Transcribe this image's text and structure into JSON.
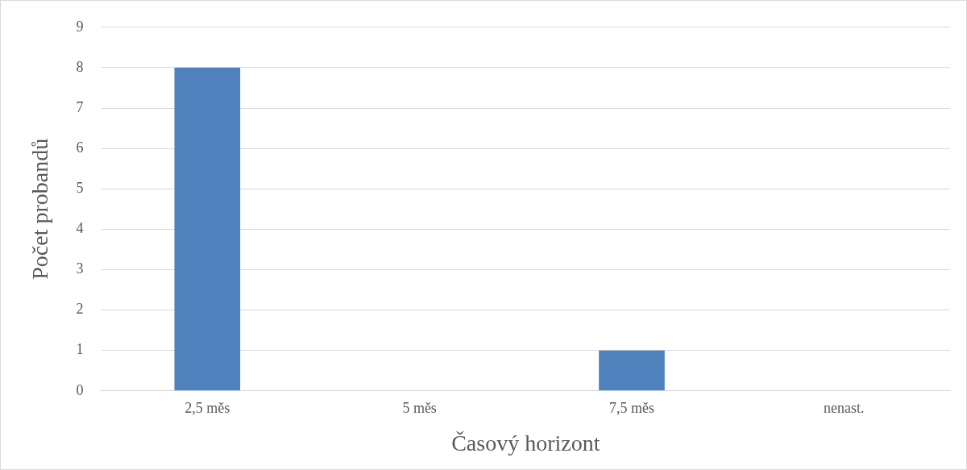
{
  "chart_data": {
    "type": "bar",
    "xlabel": "Časový horizont",
    "ylabel": "Počet probandů",
    "categories": [
      "2,5 měs",
      "5 měs",
      "7,5 měs",
      "nenast."
    ],
    "values": [
      8,
      0,
      1,
      0
    ],
    "color": "#4f81bd",
    "ylim": [
      0,
      9
    ],
    "yticks": [
      0,
      1,
      2,
      3,
      4,
      5,
      6,
      7,
      8,
      9
    ],
    "grid": "y"
  }
}
